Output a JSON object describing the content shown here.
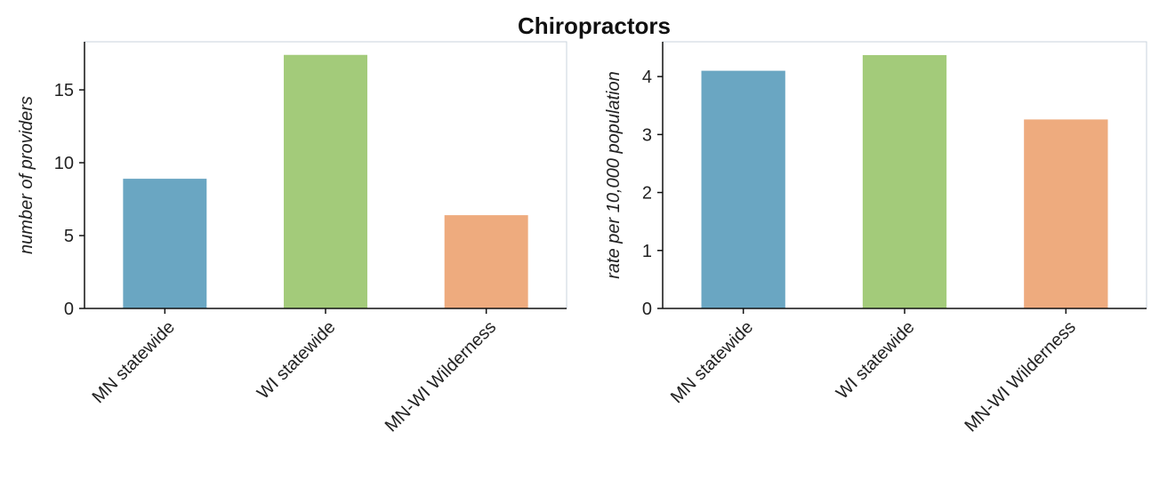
{
  "title": "Chiropractors",
  "colors": {
    "MN statewide": "#6aa6c2",
    "WI statewide": "#a3cb7a",
    "MN-WI Wilderness": "#eeab7e",
    "spine": "#111111",
    "frame": "#c9d3dc"
  },
  "chart_data": [
    {
      "type": "bar",
      "categories": [
        "MN statewide",
        "WI statewide",
        "MN-WI Wilderness"
      ],
      "values": [
        8.9,
        17.4,
        6.4
      ],
      "ylabel": "number of providers",
      "ylim": [
        0,
        18.3
      ],
      "yticks": [
        0,
        5,
        10,
        15
      ],
      "grid": false
    },
    {
      "type": "bar",
      "categories": [
        "MN statewide",
        "WI statewide",
        "MN-WI Wilderness"
      ],
      "values": [
        4.1,
        4.37,
        3.26
      ],
      "ylabel": "rate per 10,000 population",
      "ylim": [
        0,
        4.6
      ],
      "yticks": [
        0,
        1,
        2,
        3,
        4
      ],
      "grid": false
    }
  ]
}
